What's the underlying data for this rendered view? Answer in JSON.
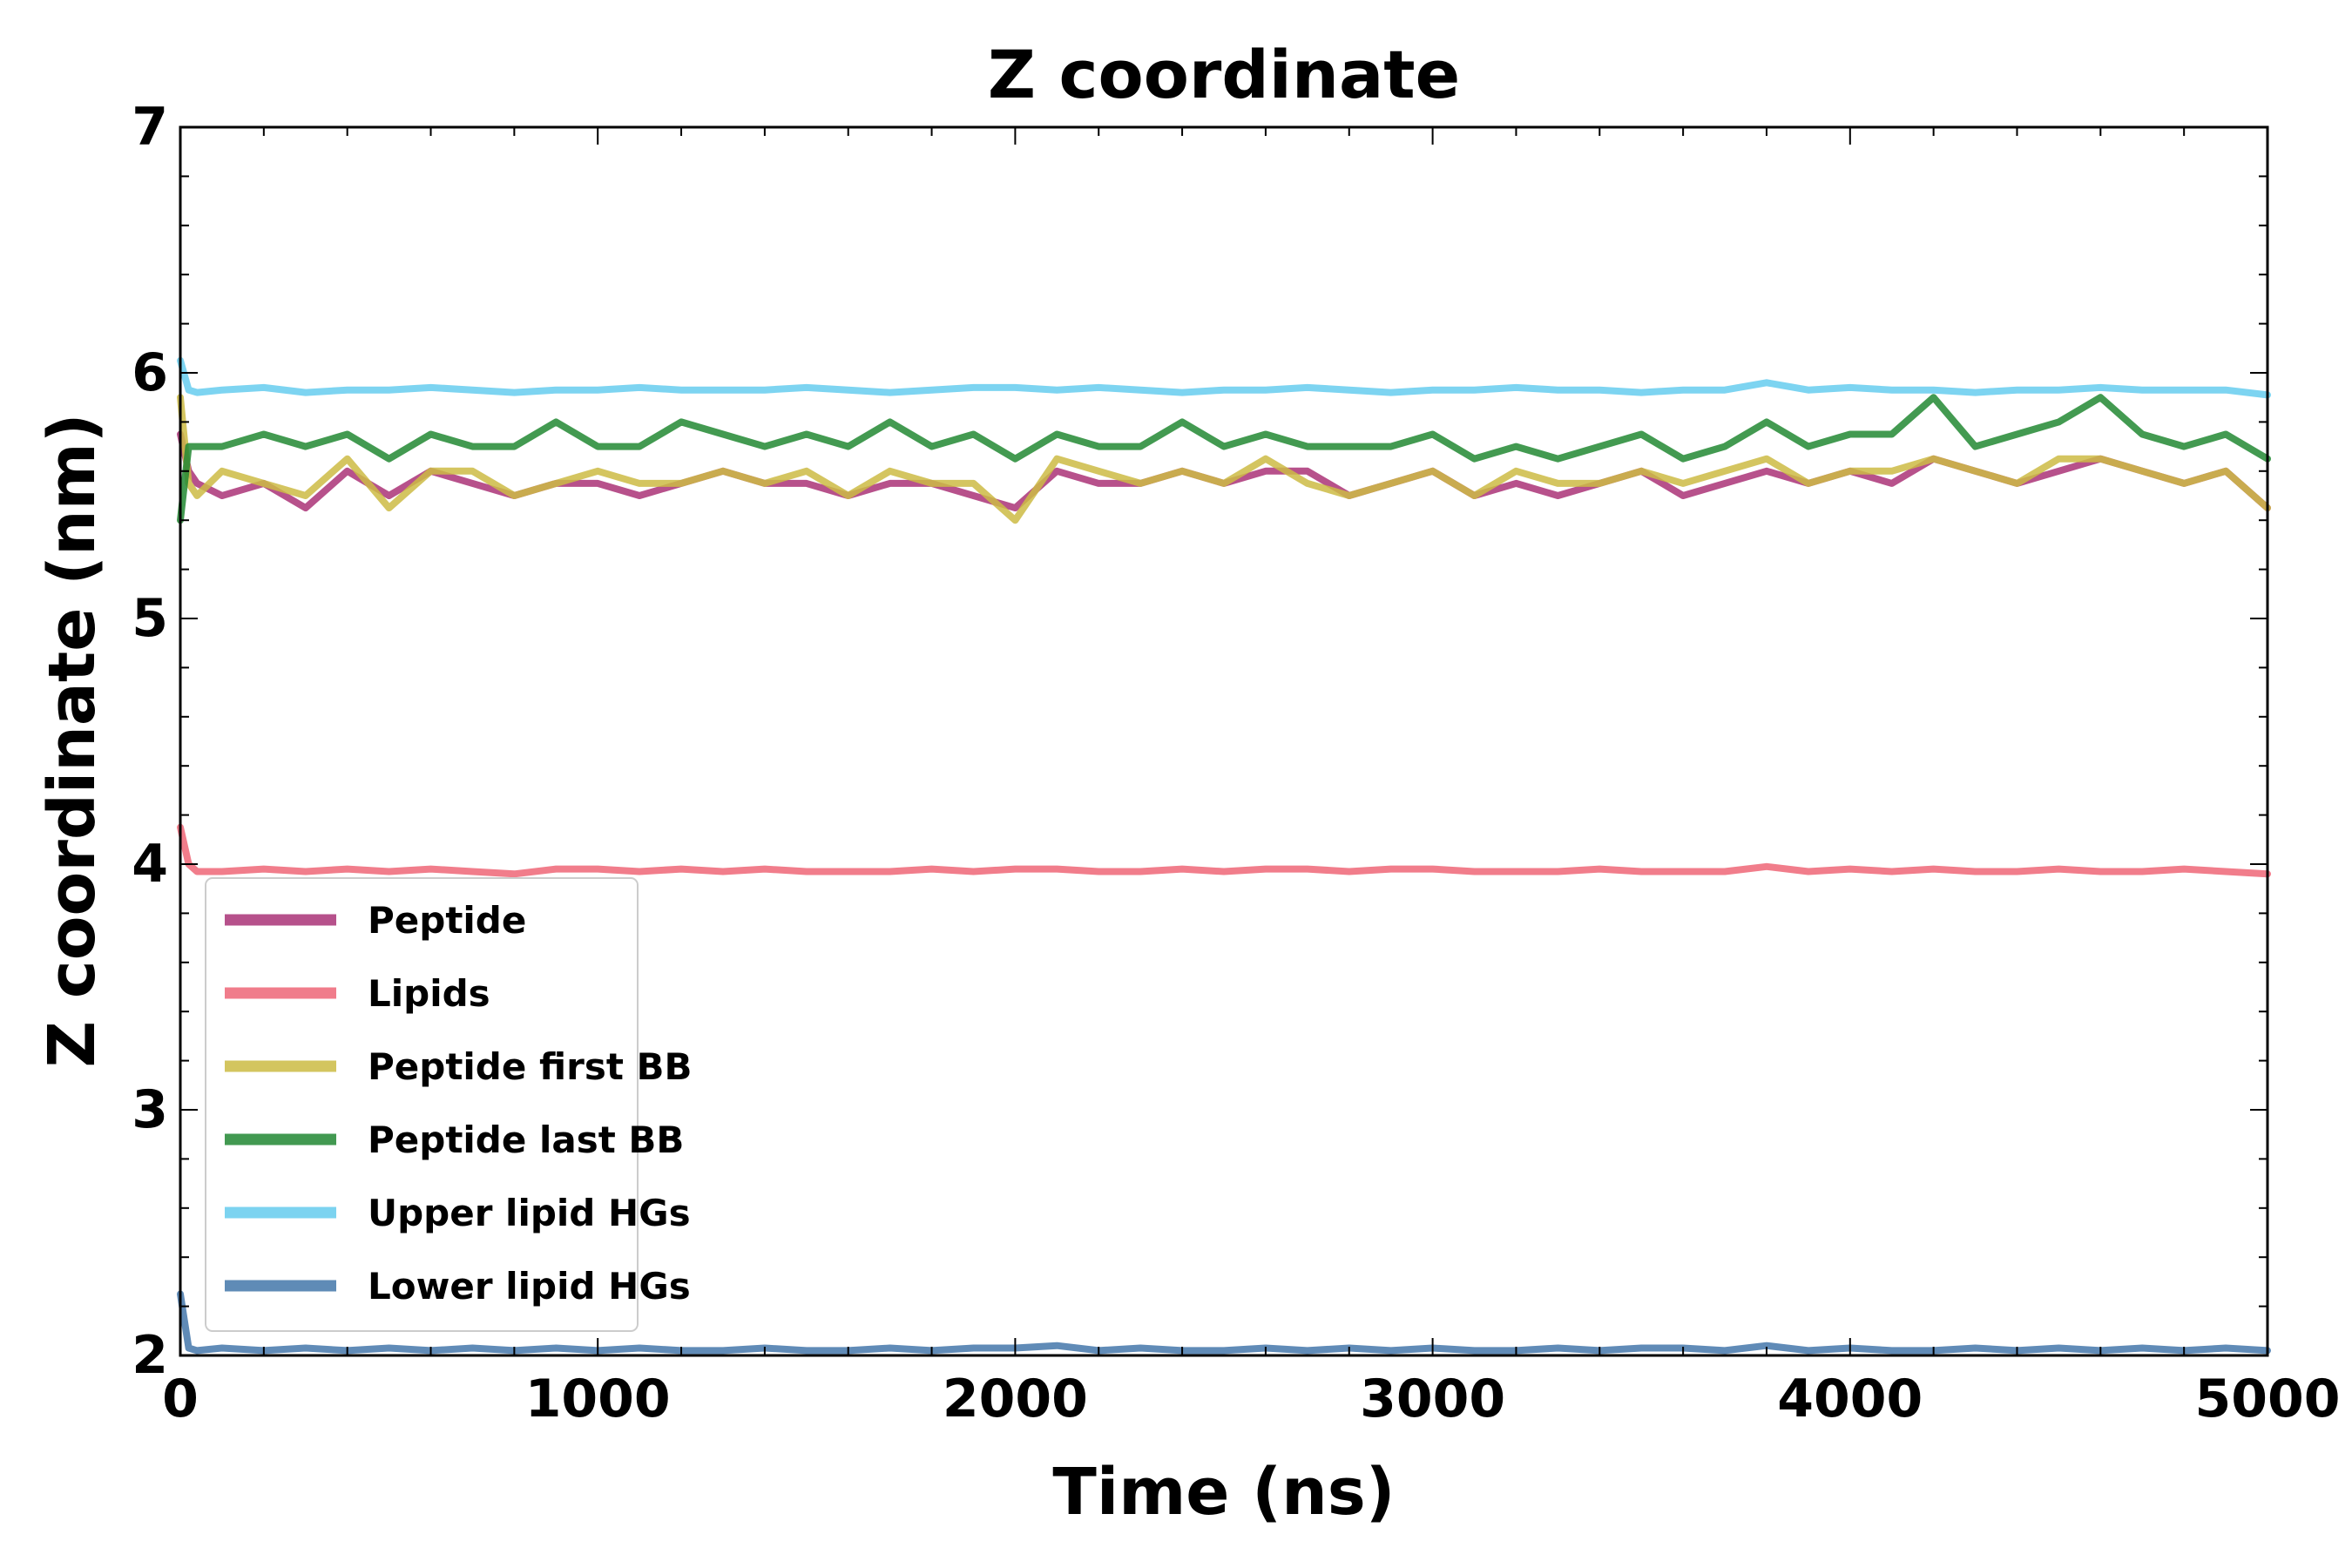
{
  "chart_data": {
    "type": "line",
    "title": "Z coordinate",
    "xlabel": "Time (ns)",
    "ylabel": "Z coordinate (nm)",
    "xlim": [
      0,
      5000
    ],
    "ylim": [
      2,
      7
    ],
    "xticks": [
      0,
      1000,
      2000,
      3000,
      4000,
      5000
    ],
    "yticks": [
      2,
      3,
      4,
      5,
      6,
      7
    ],
    "grid": false,
    "legend_position": "lower-left",
    "x": [
      0,
      20,
      40,
      100,
      200,
      300,
      400,
      500,
      600,
      700,
      800,
      900,
      1000,
      1100,
      1200,
      1300,
      1400,
      1500,
      1600,
      1700,
      1800,
      1900,
      2000,
      2100,
      2200,
      2300,
      2400,
      2500,
      2600,
      2700,
      2800,
      2900,
      3000,
      3100,
      3200,
      3300,
      3400,
      3500,
      3600,
      3700,
      3800,
      3900,
      4000,
      4100,
      4200,
      4300,
      4400,
      4500,
      4600,
      4700,
      4800,
      4900,
      5000
    ],
    "series": [
      {
        "name": "Peptide",
        "color": "#aa3377",
        "values": [
          5.75,
          5.6,
          5.55,
          5.5,
          5.55,
          5.45,
          5.6,
          5.5,
          5.6,
          5.55,
          5.5,
          5.55,
          5.55,
          5.5,
          5.55,
          5.6,
          5.55,
          5.55,
          5.5,
          5.55,
          5.55,
          5.5,
          5.45,
          5.6,
          5.55,
          5.55,
          5.6,
          5.55,
          5.6,
          5.6,
          5.5,
          5.55,
          5.6,
          5.5,
          5.55,
          5.5,
          5.55,
          5.6,
          5.5,
          5.55,
          5.6,
          5.55,
          5.6,
          5.55,
          5.65,
          5.6,
          5.55,
          5.6,
          5.65,
          5.6,
          5.55,
          5.6,
          5.45
        ]
      },
      {
        "name": "Lipids",
        "color": "#ee6677",
        "values": [
          4.15,
          4.0,
          3.97,
          3.97,
          3.98,
          3.97,
          3.98,
          3.97,
          3.98,
          3.97,
          3.96,
          3.98,
          3.98,
          3.97,
          3.98,
          3.97,
          3.98,
          3.97,
          3.97,
          3.97,
          3.98,
          3.97,
          3.98,
          3.98,
          3.97,
          3.97,
          3.98,
          3.97,
          3.98,
          3.98,
          3.97,
          3.98,
          3.98,
          3.97,
          3.97,
          3.97,
          3.98,
          3.97,
          3.97,
          3.97,
          3.99,
          3.97,
          3.98,
          3.97,
          3.98,
          3.97,
          3.97,
          3.98,
          3.97,
          3.97,
          3.98,
          3.97,
          3.96
        ]
      },
      {
        "name": "Peptide first BB",
        "color": "#ccbb44",
        "values": [
          5.9,
          5.55,
          5.5,
          5.6,
          5.55,
          5.5,
          5.65,
          5.45,
          5.6,
          5.6,
          5.5,
          5.55,
          5.6,
          5.55,
          5.55,
          5.6,
          5.55,
          5.6,
          5.5,
          5.6,
          5.55,
          5.55,
          5.4,
          5.65,
          5.6,
          5.55,
          5.6,
          5.55,
          5.65,
          5.55,
          5.5,
          5.55,
          5.6,
          5.5,
          5.6,
          5.55,
          5.55,
          5.6,
          5.55,
          5.6,
          5.65,
          5.55,
          5.6,
          5.6,
          5.65,
          5.6,
          5.55,
          5.65,
          5.65,
          5.6,
          5.55,
          5.6,
          5.45
        ]
      },
      {
        "name": "Peptide last BB",
        "color": "#228833",
        "values": [
          5.4,
          5.7,
          5.7,
          5.7,
          5.75,
          5.7,
          5.75,
          5.65,
          5.75,
          5.7,
          5.7,
          5.8,
          5.7,
          5.7,
          5.8,
          5.75,
          5.7,
          5.75,
          5.7,
          5.8,
          5.7,
          5.75,
          5.65,
          5.75,
          5.7,
          5.7,
          5.8,
          5.7,
          5.75,
          5.7,
          5.7,
          5.7,
          5.75,
          5.65,
          5.7,
          5.65,
          5.7,
          5.75,
          5.65,
          5.7,
          5.8,
          5.7,
          5.75,
          5.75,
          5.9,
          5.7,
          5.75,
          5.8,
          5.9,
          5.75,
          5.7,
          5.75,
          5.65
        ]
      },
      {
        "name": "Upper lipid HGs",
        "color": "#66ccee",
        "values": [
          6.05,
          5.93,
          5.92,
          5.93,
          5.94,
          5.92,
          5.93,
          5.93,
          5.94,
          5.93,
          5.92,
          5.93,
          5.93,
          5.94,
          5.93,
          5.93,
          5.93,
          5.94,
          5.93,
          5.92,
          5.93,
          5.94,
          5.94,
          5.93,
          5.94,
          5.93,
          5.92,
          5.93,
          5.93,
          5.94,
          5.93,
          5.92,
          5.93,
          5.93,
          5.94,
          5.93,
          5.93,
          5.92,
          5.93,
          5.93,
          5.96,
          5.93,
          5.94,
          5.93,
          5.93,
          5.92,
          5.93,
          5.93,
          5.94,
          5.93,
          5.93,
          5.93,
          5.91
        ]
      },
      {
        "name": "Lower lipid HGs",
        "color": "#4477aa",
        "values": [
          2.25,
          2.03,
          2.02,
          2.03,
          2.02,
          2.03,
          2.02,
          2.03,
          2.02,
          2.03,
          2.02,
          2.03,
          2.02,
          2.03,
          2.02,
          2.02,
          2.03,
          2.02,
          2.02,
          2.03,
          2.02,
          2.03,
          2.03,
          2.04,
          2.02,
          2.03,
          2.02,
          2.02,
          2.03,
          2.02,
          2.03,
          2.02,
          2.03,
          2.02,
          2.02,
          2.03,
          2.02,
          2.03,
          2.03,
          2.02,
          2.04,
          2.02,
          2.03,
          2.02,
          2.02,
          2.03,
          2.02,
          2.03,
          2.02,
          2.03,
          2.02,
          2.03,
          2.02
        ]
      }
    ]
  }
}
